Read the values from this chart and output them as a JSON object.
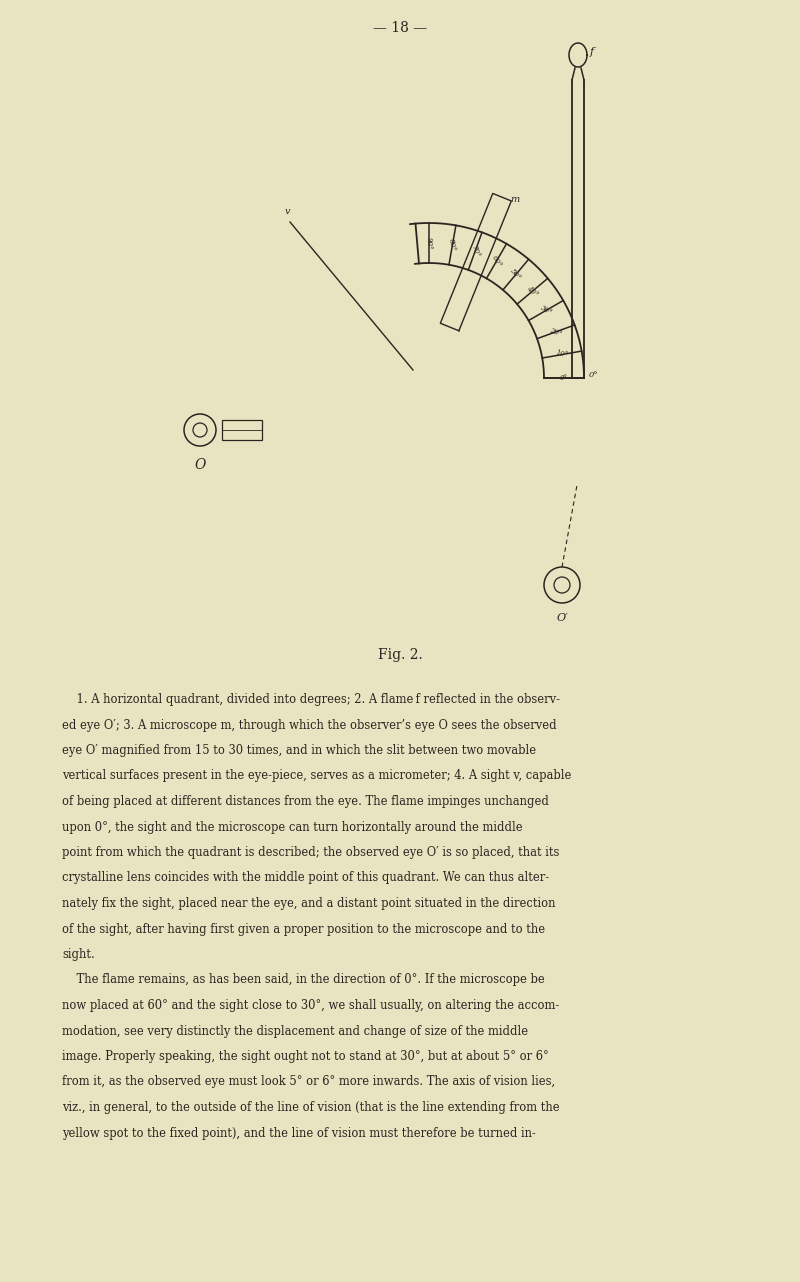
{
  "bg_color": "#e8e3c0",
  "text_color": "#1c1c1c",
  "page_number_text": "— 18 —",
  "fig_label": "Fig. 2.",
  "body_lines": [
    "    1. A horizontal quadrant, divided into degrees; 2. A flame f reflected in the observ-",
    "ed eye O′; 3. A microscope m, through which the observer’s eye O sees the observed",
    "eye O′ magnified from 15 to 30 times, and in which the slit between two movable",
    "vertical surfaces present in the eye-piece, serves as a micrometer; 4. A sight v, capable",
    "of being placed at different distances from the eye. The flame impinges unchanged",
    "upon 0°, the sight and the microscope can turn horizontally around the middle",
    "point from which the quadrant is described; the observed eye O′ is so placed, that its",
    "crystalline lens coincides with the middle point of this quadrant. We can thus alter-",
    "nately fix the sight, placed near the eye, and a distant point situated in the direction",
    "of the sight, after having first given a proper position to the microscope and to the",
    "sight.",
    "    The flame remains, as has been said, in the direction of 0°. If the microscope be",
    "now placed at 60° and the sight close to 30°, we shall usually, on altering the accom-",
    "modation, see very distinctly the displacement and change of size of the middle",
    "image. Properly speaking, the sight ought not to stand at 30°, but at about 5° or 6°",
    "from it, as the observed eye must look 5° or 6° more inwards. The axis of vision lies,",
    "viz., in general, to the outside of the line of vision (that is the line extending from the",
    "yellow spot to the fixed point), and the line of vision must therefore be turned in-"
  ]
}
